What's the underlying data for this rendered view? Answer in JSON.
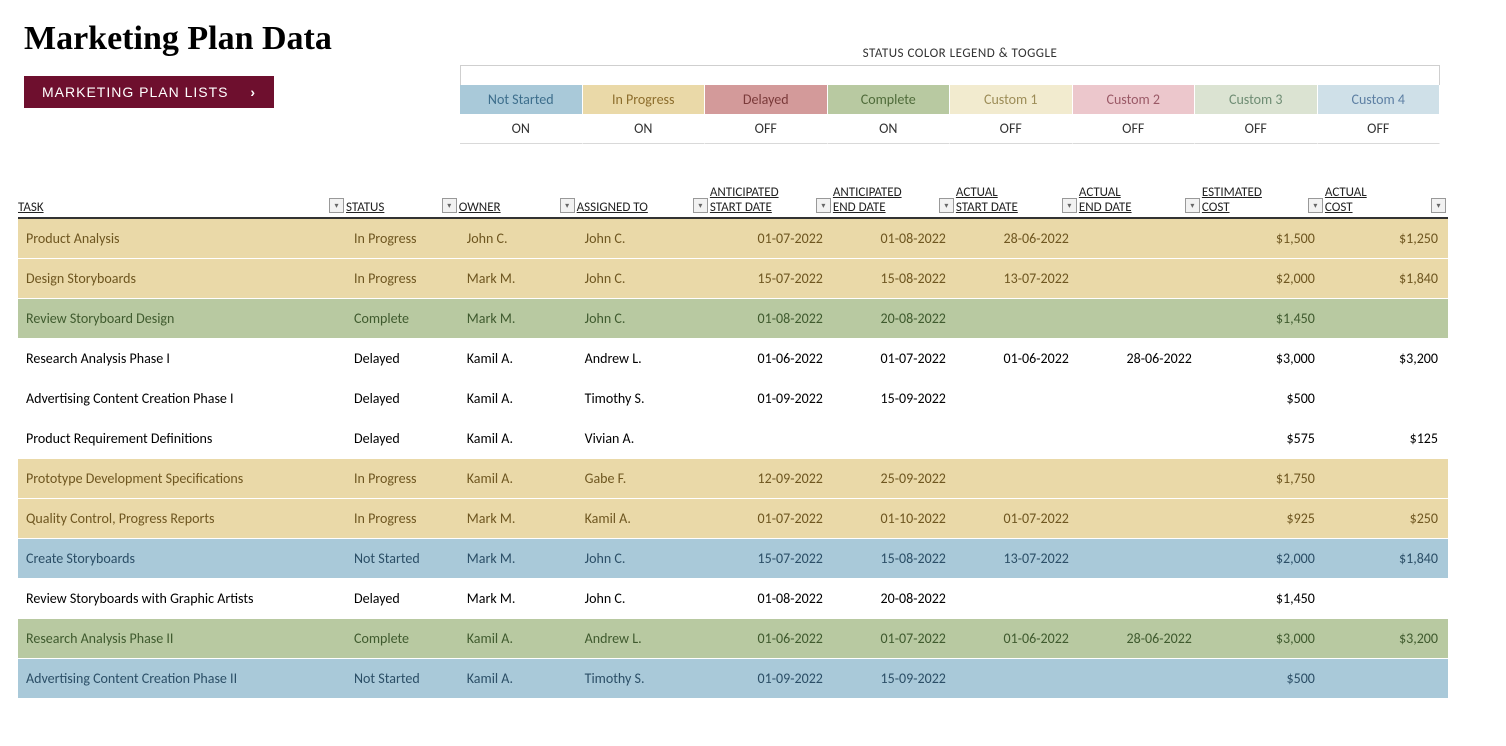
{
  "title": "Marketing Plan Data",
  "lists_button": "MARKETING PLAN LISTS",
  "legend": {
    "heading": "STATUS COLOR LEGEND & TOGGLE",
    "items": [
      {
        "label": "Not Started",
        "toggle": "ON",
        "bg": "#a9c9d9",
        "fg": "#3d6e8c"
      },
      {
        "label": "In Progress",
        "toggle": "ON",
        "bg": "#ead9a8",
        "fg": "#8c6d2c"
      },
      {
        "label": "Delayed",
        "toggle": "OFF",
        "bg": "#d39a9a",
        "fg": "#7a3a3a"
      },
      {
        "label": "Complete",
        "toggle": "ON",
        "bg": "#b8c9a1",
        "fg": "#4f6b3a"
      },
      {
        "label": "Custom 1",
        "toggle": "OFF",
        "bg": "#f2ebcf",
        "fg": "#9c8c57"
      },
      {
        "label": "Custom 2",
        "toggle": "OFF",
        "bg": "#ecc7cc",
        "fg": "#9a5966"
      },
      {
        "label": "Custom 3",
        "toggle": "OFF",
        "bg": "#dbe3d2",
        "fg": "#6e8c73"
      },
      {
        "label": "Custom 4",
        "toggle": "OFF",
        "bg": "#cfe0e8",
        "fg": "#5d7fa3"
      }
    ]
  },
  "status_colors": {
    "Not Started": {
      "bg": "#a9c9d9",
      "fg": "#2b4e66"
    },
    "In Progress": {
      "bg": "#ead9a8",
      "fg": "#6e5620"
    },
    "Complete": {
      "bg": "#b8c9a1",
      "fg": "#3f5a2e"
    },
    "Delayed": {
      "bg": "#ffffff",
      "fg": "#000000"
    }
  },
  "columns": [
    {
      "key": "task",
      "label": "TASK"
    },
    {
      "key": "status",
      "label": "STATUS"
    },
    {
      "key": "owner",
      "label": "OWNER"
    },
    {
      "key": "assigned",
      "label": "ASSIGNED TO"
    },
    {
      "key": "ant_start",
      "label": "ANTICIPATED\nSTART DATE"
    },
    {
      "key": "ant_end",
      "label": "ANTICIPATED\nEND DATE"
    },
    {
      "key": "act_start",
      "label": "ACTUAL\nSTART DATE"
    },
    {
      "key": "act_end",
      "label": "ACTUAL\nEND DATE"
    },
    {
      "key": "est_cost",
      "label": "ESTIMATED\nCOST"
    },
    {
      "key": "act_cost",
      "label": "ACTUAL\nCOST"
    }
  ],
  "rows": [
    {
      "task": "Product Analysis",
      "status": "In Progress",
      "owner": "John C.",
      "assigned": "John C.",
      "ant_start": "01-07-2022",
      "ant_end": "01-08-2022",
      "act_start": "28-06-2022",
      "act_end": "",
      "est_cost": "$1,500",
      "act_cost": "$1,250"
    },
    {
      "task": "Design Storyboards",
      "status": "In Progress",
      "owner": "Mark M.",
      "assigned": "John C.",
      "ant_start": "15-07-2022",
      "ant_end": "15-08-2022",
      "act_start": "13-07-2022",
      "act_end": "",
      "est_cost": "$2,000",
      "act_cost": "$1,840"
    },
    {
      "task": "Review Storyboard Design",
      "status": "Complete",
      "owner": "Mark M.",
      "assigned": "John C.",
      "ant_start": "01-08-2022",
      "ant_end": "20-08-2022",
      "act_start": "",
      "act_end": "",
      "est_cost": "$1,450",
      "act_cost": ""
    },
    {
      "task": "Research Analysis Phase I",
      "status": "Delayed",
      "owner": "Kamil A.",
      "assigned": "Andrew L.",
      "ant_start": "01-06-2022",
      "ant_end": "01-07-2022",
      "act_start": "01-06-2022",
      "act_end": "28-06-2022",
      "est_cost": "$3,000",
      "act_cost": "$3,200"
    },
    {
      "task": "Advertising Content Creation Phase I",
      "status": "Delayed",
      "owner": "Kamil A.",
      "assigned": "Timothy S.",
      "ant_start": "01-09-2022",
      "ant_end": "15-09-2022",
      "act_start": "",
      "act_end": "",
      "est_cost": "$500",
      "act_cost": ""
    },
    {
      "task": "Product Requirement Definitions",
      "status": "Delayed",
      "owner": "Kamil A.",
      "assigned": "Vivian A.",
      "ant_start": "",
      "ant_end": "",
      "act_start": "",
      "act_end": "",
      "est_cost": "$575",
      "act_cost": "$125"
    },
    {
      "task": "Prototype Development Specifications",
      "status": "In Progress",
      "owner": "Kamil A.",
      "assigned": "Gabe F.",
      "ant_start": "12-09-2022",
      "ant_end": "25-09-2022",
      "act_start": "",
      "act_end": "",
      "est_cost": "$1,750",
      "act_cost": ""
    },
    {
      "task": "Quality Control, Progress Reports",
      "status": "In Progress",
      "owner": "Mark M.",
      "assigned": "Kamil A.",
      "ant_start": "01-07-2022",
      "ant_end": "01-10-2022",
      "act_start": "01-07-2022",
      "act_end": "",
      "est_cost": "$925",
      "act_cost": "$250"
    },
    {
      "task": "Create Storyboards",
      "status": "Not Started",
      "owner": "Mark M.",
      "assigned": "John C.",
      "ant_start": "15-07-2022",
      "ant_end": "15-08-2022",
      "act_start": "13-07-2022",
      "act_end": "",
      "est_cost": "$2,000",
      "act_cost": "$1,840"
    },
    {
      "task": "Review Storyboards with Graphic Artists",
      "status": "Delayed",
      "owner": "Mark M.",
      "assigned": "John C.",
      "ant_start": "01-08-2022",
      "ant_end": "20-08-2022",
      "act_start": "",
      "act_end": "",
      "est_cost": "$1,450",
      "act_cost": ""
    },
    {
      "task": "Research Analysis Phase II",
      "status": "Complete",
      "owner": "Kamil A.",
      "assigned": "Andrew L.",
      "ant_start": "01-06-2022",
      "ant_end": "01-07-2022",
      "act_start": "01-06-2022",
      "act_end": "28-06-2022",
      "est_cost": "$3,000",
      "act_cost": "$3,200"
    },
    {
      "task": "Advertising Content Creation Phase II",
      "status": "Not Started",
      "owner": "Kamil A.",
      "assigned": "Timothy S.",
      "ant_start": "01-09-2022",
      "ant_end": "15-09-2022",
      "act_start": "",
      "act_end": "",
      "est_cost": "$500",
      "act_cost": ""
    }
  ]
}
